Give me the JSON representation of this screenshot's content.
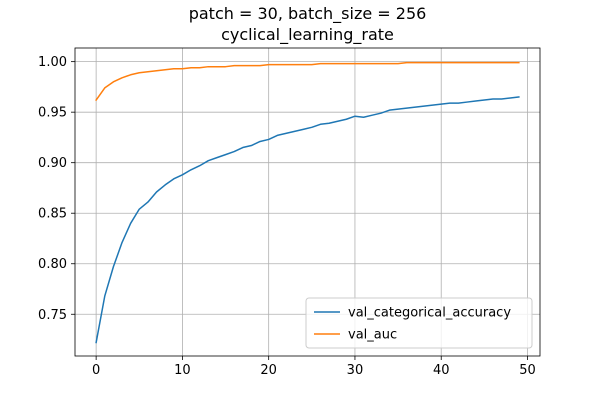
{
  "chart_data": {
    "type": "line",
    "title_lines": [
      "patch = 30,  batch_size = 256",
      "cyclical_learning_rate"
    ],
    "xlabel": "",
    "ylabel": "",
    "xlim": [
      -2.45,
      51.45
    ],
    "ylim": [
      0.7087,
      1.0135
    ],
    "xticks": [
      0,
      10,
      20,
      30,
      40,
      50
    ],
    "yticks": [
      0.75,
      0.8,
      0.85,
      0.9,
      0.95,
      1.0
    ],
    "ytick_labels": [
      "0.75",
      "0.80",
      "0.85",
      "0.90",
      "0.95",
      "1.00"
    ],
    "grid": true,
    "legend_position": "lower right",
    "x": [
      0,
      1,
      2,
      3,
      4,
      5,
      6,
      7,
      8,
      9,
      10,
      11,
      12,
      13,
      14,
      15,
      16,
      17,
      18,
      19,
      20,
      21,
      22,
      23,
      24,
      25,
      26,
      27,
      28,
      29,
      30,
      31,
      32,
      33,
      34,
      35,
      36,
      37,
      38,
      39,
      40,
      41,
      42,
      43,
      44,
      45,
      46,
      47,
      48,
      49
    ],
    "series": [
      {
        "name": "val_categorical_accuracy",
        "color": "#1f77b4",
        "values": [
          0.722,
          0.768,
          0.797,
          0.821,
          0.84,
          0.854,
          0.861,
          0.871,
          0.878,
          0.884,
          0.888,
          0.893,
          0.897,
          0.902,
          0.905,
          0.908,
          0.911,
          0.915,
          0.917,
          0.921,
          0.923,
          0.927,
          0.929,
          0.931,
          0.933,
          0.935,
          0.938,
          0.939,
          0.941,
          0.943,
          0.946,
          0.945,
          0.947,
          0.949,
          0.952,
          0.953,
          0.954,
          0.955,
          0.956,
          0.957,
          0.958,
          0.959,
          0.959,
          0.96,
          0.961,
          0.962,
          0.963,
          0.963,
          0.964,
          0.965
        ]
      },
      {
        "name": "val_auc",
        "color": "#ff7f0e",
        "values": [
          0.962,
          0.974,
          0.98,
          0.984,
          0.987,
          0.989,
          0.99,
          0.991,
          0.992,
          0.993,
          0.993,
          0.994,
          0.994,
          0.995,
          0.995,
          0.995,
          0.996,
          0.996,
          0.996,
          0.996,
          0.997,
          0.997,
          0.997,
          0.997,
          0.997,
          0.997,
          0.998,
          0.998,
          0.998,
          0.998,
          0.998,
          0.998,
          0.998,
          0.998,
          0.998,
          0.998,
          0.999,
          0.999,
          0.999,
          0.999,
          0.999,
          0.999,
          0.999,
          0.999,
          0.999,
          0.999,
          0.999,
          0.999,
          0.999,
          0.999
        ]
      }
    ]
  }
}
